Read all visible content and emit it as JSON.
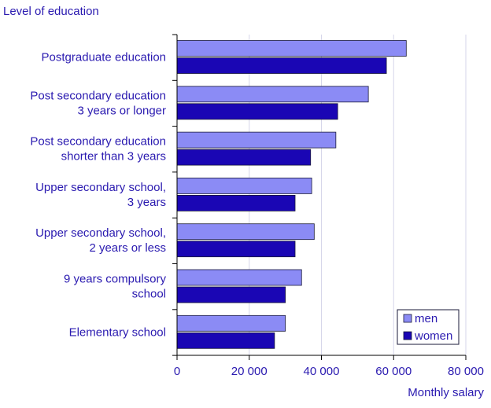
{
  "chart_data": {
    "type": "bar",
    "orientation": "horizontal",
    "title": "Level of education",
    "xlabel": "Monthly salary",
    "ylabel": "Level of education",
    "xlim": [
      0,
      80000
    ],
    "x_ticks": [
      {
        "value": 0,
        "label": "0"
      },
      {
        "value": 20000,
        "label": "20 000"
      },
      {
        "value": 40000,
        "label": "40 000"
      },
      {
        "value": 60000,
        "label": "60 000"
      },
      {
        "value": 80000,
        "label": "80 000"
      }
    ],
    "grid": "vertical",
    "legend_position": "bottom-right",
    "categories": [
      [
        "Postgraduate education"
      ],
      [
        "Post secondary education",
        "3 years or longer"
      ],
      [
        "Post secondary education",
        "shorter than 3 years"
      ],
      [
        "Upper secondary school,",
        "3 years"
      ],
      [
        "Upper secondary school,",
        "2 years or less"
      ],
      [
        "9 years compulsory",
        "school"
      ],
      [
        "Elementary school"
      ]
    ],
    "series": [
      {
        "name": "men",
        "color": "#8b8bf5",
        "values": [
          63500,
          53000,
          44000,
          37300,
          38000,
          34500,
          30000
        ]
      },
      {
        "name": "women",
        "color": "#1a06b4",
        "values": [
          58000,
          44500,
          37000,
          32700,
          32700,
          30000,
          27000
        ]
      }
    ],
    "text_color": "#2a1ab0",
    "grid_color": "#d6d6ea",
    "axis_color": "#2a1ab0"
  }
}
